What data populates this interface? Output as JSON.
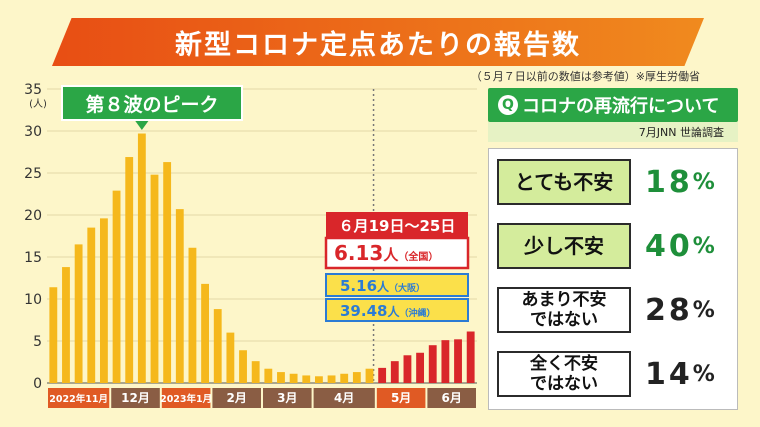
{
  "title": "新型コロナ定点あたりの報告数",
  "note": "（５月７日以前の数値は参考値）※厚生労働省",
  "chart_data": {
    "type": "bar",
    "ylabel": "(人)",
    "ylim": [
      0,
      35
    ],
    "yticks": [
      0,
      5,
      10,
      15,
      20,
      25,
      30,
      35
    ],
    "grid": true,
    "values": [
      11.4,
      13.8,
      16.5,
      18.5,
      19.6,
      22.9,
      26.9,
      29.7,
      24.8,
      26.3,
      20.7,
      16.1,
      11.8,
      8.8,
      6.0,
      3.9,
      2.6,
      1.7,
      1.3,
      1.1,
      0.9,
      0.8,
      0.9,
      1.1,
      1.3,
      1.7,
      1.8,
      2.6,
      3.3,
      3.6,
      4.5,
      5.1,
      5.2,
      6.13
    ],
    "bar_colors": {
      "reference": "#f5b81c",
      "current": "#d9262a"
    },
    "first_current_index": 26,
    "month_labels": [
      {
        "label": "2022年11月",
        "color": "#e05a24",
        "start": 0,
        "end": 5
      },
      {
        "label": "12月",
        "color": "#8a5d44",
        "start": 5,
        "end": 9
      },
      {
        "label": "2023年1月",
        "color": "#e05a24",
        "start": 9,
        "end": 13
      },
      {
        "label": "2月",
        "color": "#8a5d44",
        "start": 13,
        "end": 17
      },
      {
        "label": "3月",
        "color": "#8a5d44",
        "start": 17,
        "end": 21
      },
      {
        "label": "4月",
        "color": "#8a5d44",
        "start": 21,
        "end": 26
      },
      {
        "label": "5月",
        "color": "#e05a24",
        "start": 26,
        "end": 30
      },
      {
        "label": "6月",
        "color": "#8a5d44",
        "start": 30,
        "end": 34
      }
    ],
    "peak_index": 7,
    "annotations": {
      "peak": "第８波のピーク",
      "week_range": "６月19日～25日",
      "national": {
        "value": "6.13",
        "unit": "人",
        "region": "（全国）"
      },
      "osaka": {
        "value": "5.16",
        "unit": "人",
        "region": "（大阪）"
      },
      "okinawa": {
        "value": "39.48",
        "unit": "人",
        "region": "（沖縄）"
      }
    }
  },
  "survey": {
    "q_mark": "Q",
    "title": "コロナの再流行について",
    "source": "7月JNN 世論調査",
    "rows": [
      {
        "label": "とても不安",
        "value": "18",
        "pct": "%"
      },
      {
        "label": "少し不安",
        "value": "40",
        "pct": "%"
      },
      {
        "label": "あまり不安\nではない",
        "value": "28",
        "pct": "%"
      },
      {
        "label": "全く不安\nではない",
        "value": "14",
        "pct": "%"
      }
    ]
  }
}
